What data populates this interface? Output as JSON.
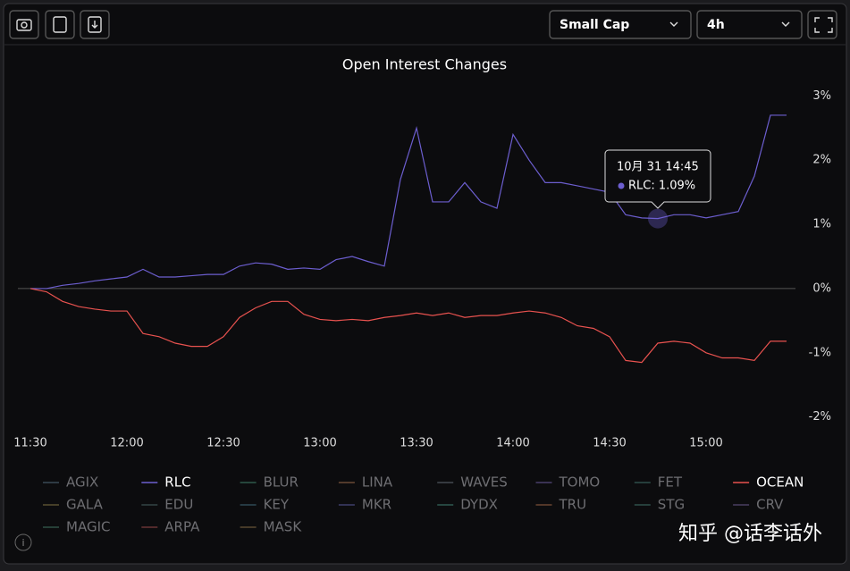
{
  "toolbar": {
    "dropdowns": [
      "Small Cap",
      "4h"
    ]
  },
  "watermark": "知乎 @话李话外",
  "chart_data": {
    "type": "line",
    "title": "Open Interest Changes",
    "x": [
      "11:30",
      "11:35",
      "11:40",
      "11:45",
      "11:50",
      "11:55",
      "12:00",
      "12:05",
      "12:10",
      "12:15",
      "12:20",
      "12:25",
      "12:30",
      "12:35",
      "12:40",
      "12:45",
      "12:50",
      "12:55",
      "13:00",
      "13:05",
      "13:10",
      "13:15",
      "13:20",
      "13:25",
      "13:30",
      "13:35",
      "13:40",
      "13:45",
      "13:50",
      "13:55",
      "14:00",
      "14:05",
      "14:10",
      "14:15",
      "14:20",
      "14:25",
      "14:30",
      "14:35",
      "14:40",
      "14:45",
      "14:50",
      "14:55",
      "15:00",
      "15:05",
      "15:10",
      "15:15",
      "15:20",
      "15:25"
    ],
    "ylim": [
      -2.2,
      3.2
    ],
    "yticks": [
      {
        "value": 3,
        "label": "3%"
      },
      {
        "value": 2,
        "label": "2%"
      },
      {
        "value": 1,
        "label": "1%"
      },
      {
        "value": 0,
        "label": "0%"
      },
      {
        "value": -1,
        "label": "-1%"
      },
      {
        "value": -2,
        "label": "-2%"
      }
    ],
    "series": [
      {
        "name": "AGIX",
        "color": "#3a4a55",
        "visible": false
      },
      {
        "name": "RLC",
        "color": "#6c5ecf",
        "values": [
          0,
          0,
          0.05,
          0.08,
          0.12,
          0.15,
          0.18,
          0.3,
          0.18,
          0.18,
          0.2,
          0.22,
          0.22,
          0.35,
          0.4,
          0.38,
          0.3,
          0.32,
          0.3,
          0.45,
          0.5,
          0.42,
          0.35,
          1.7,
          2.5,
          1.35,
          1.35,
          1.65,
          1.35,
          1.25,
          2.4,
          2.0,
          1.65,
          1.65,
          1.6,
          1.55,
          1.5,
          1.15,
          1.1,
          1.09,
          1.15,
          1.15,
          1.1,
          1.15,
          1.2,
          1.75,
          2.7,
          2.7
        ]
      },
      {
        "name": "BLUR",
        "color": "#2f5a4a",
        "visible": false
      },
      {
        "name": "LINA",
        "color": "#6a4a35",
        "visible": false
      },
      {
        "name": "WAVES",
        "color": "#444a50",
        "visible": false
      },
      {
        "name": "TOMO",
        "color": "#4a3f6a",
        "visible": false
      },
      {
        "name": "FET",
        "color": "#2f4f4a",
        "visible": false
      },
      {
        "name": "OCEAN",
        "color": "#e8524f",
        "values": [
          0,
          -0.05,
          -0.2,
          -0.28,
          -0.32,
          -0.35,
          -0.35,
          -0.7,
          -0.75,
          -0.85,
          -0.9,
          -0.9,
          -0.75,
          -0.45,
          -0.3,
          -0.2,
          -0.2,
          -0.4,
          -0.48,
          -0.5,
          -0.48,
          -0.5,
          -0.45,
          -0.42,
          -0.38,
          -0.42,
          -0.38,
          -0.45,
          -0.42,
          -0.42,
          -0.38,
          -0.35,
          -0.38,
          -0.45,
          -0.58,
          -0.62,
          -0.75,
          -1.12,
          -1.15,
          -0.85,
          -0.82,
          -0.85,
          -1.0,
          -1.08,
          -1.08,
          -1.12,
          -0.82,
          -0.82
        ]
      },
      {
        "name": "GALA",
        "color": "#5a5030",
        "visible": false
      },
      {
        "name": "EDU",
        "color": "#354545",
        "visible": false
      },
      {
        "name": "KEY",
        "color": "#2f4a55",
        "visible": false
      },
      {
        "name": "MKR",
        "color": "#3f3f6a",
        "visible": false
      },
      {
        "name": "DYDX",
        "color": "#2f5a50",
        "visible": false
      },
      {
        "name": "TRU",
        "color": "#6a4530",
        "visible": false
      },
      {
        "name": "STG",
        "color": "#2f504a",
        "visible": false
      },
      {
        "name": "CRV",
        "color": "#4a3f60",
        "visible": false
      },
      {
        "name": "MAGIC",
        "color": "#2f5045",
        "visible": false
      },
      {
        "name": "ARPA",
        "color": "#6a3535",
        "visible": false
      },
      {
        "name": "MASK",
        "color": "#5a4a30",
        "visible": false
      }
    ],
    "tooltip": {
      "title": "10月 31 14:45",
      "label": "RLC: 1.09%",
      "series": 1,
      "index": 39
    }
  }
}
